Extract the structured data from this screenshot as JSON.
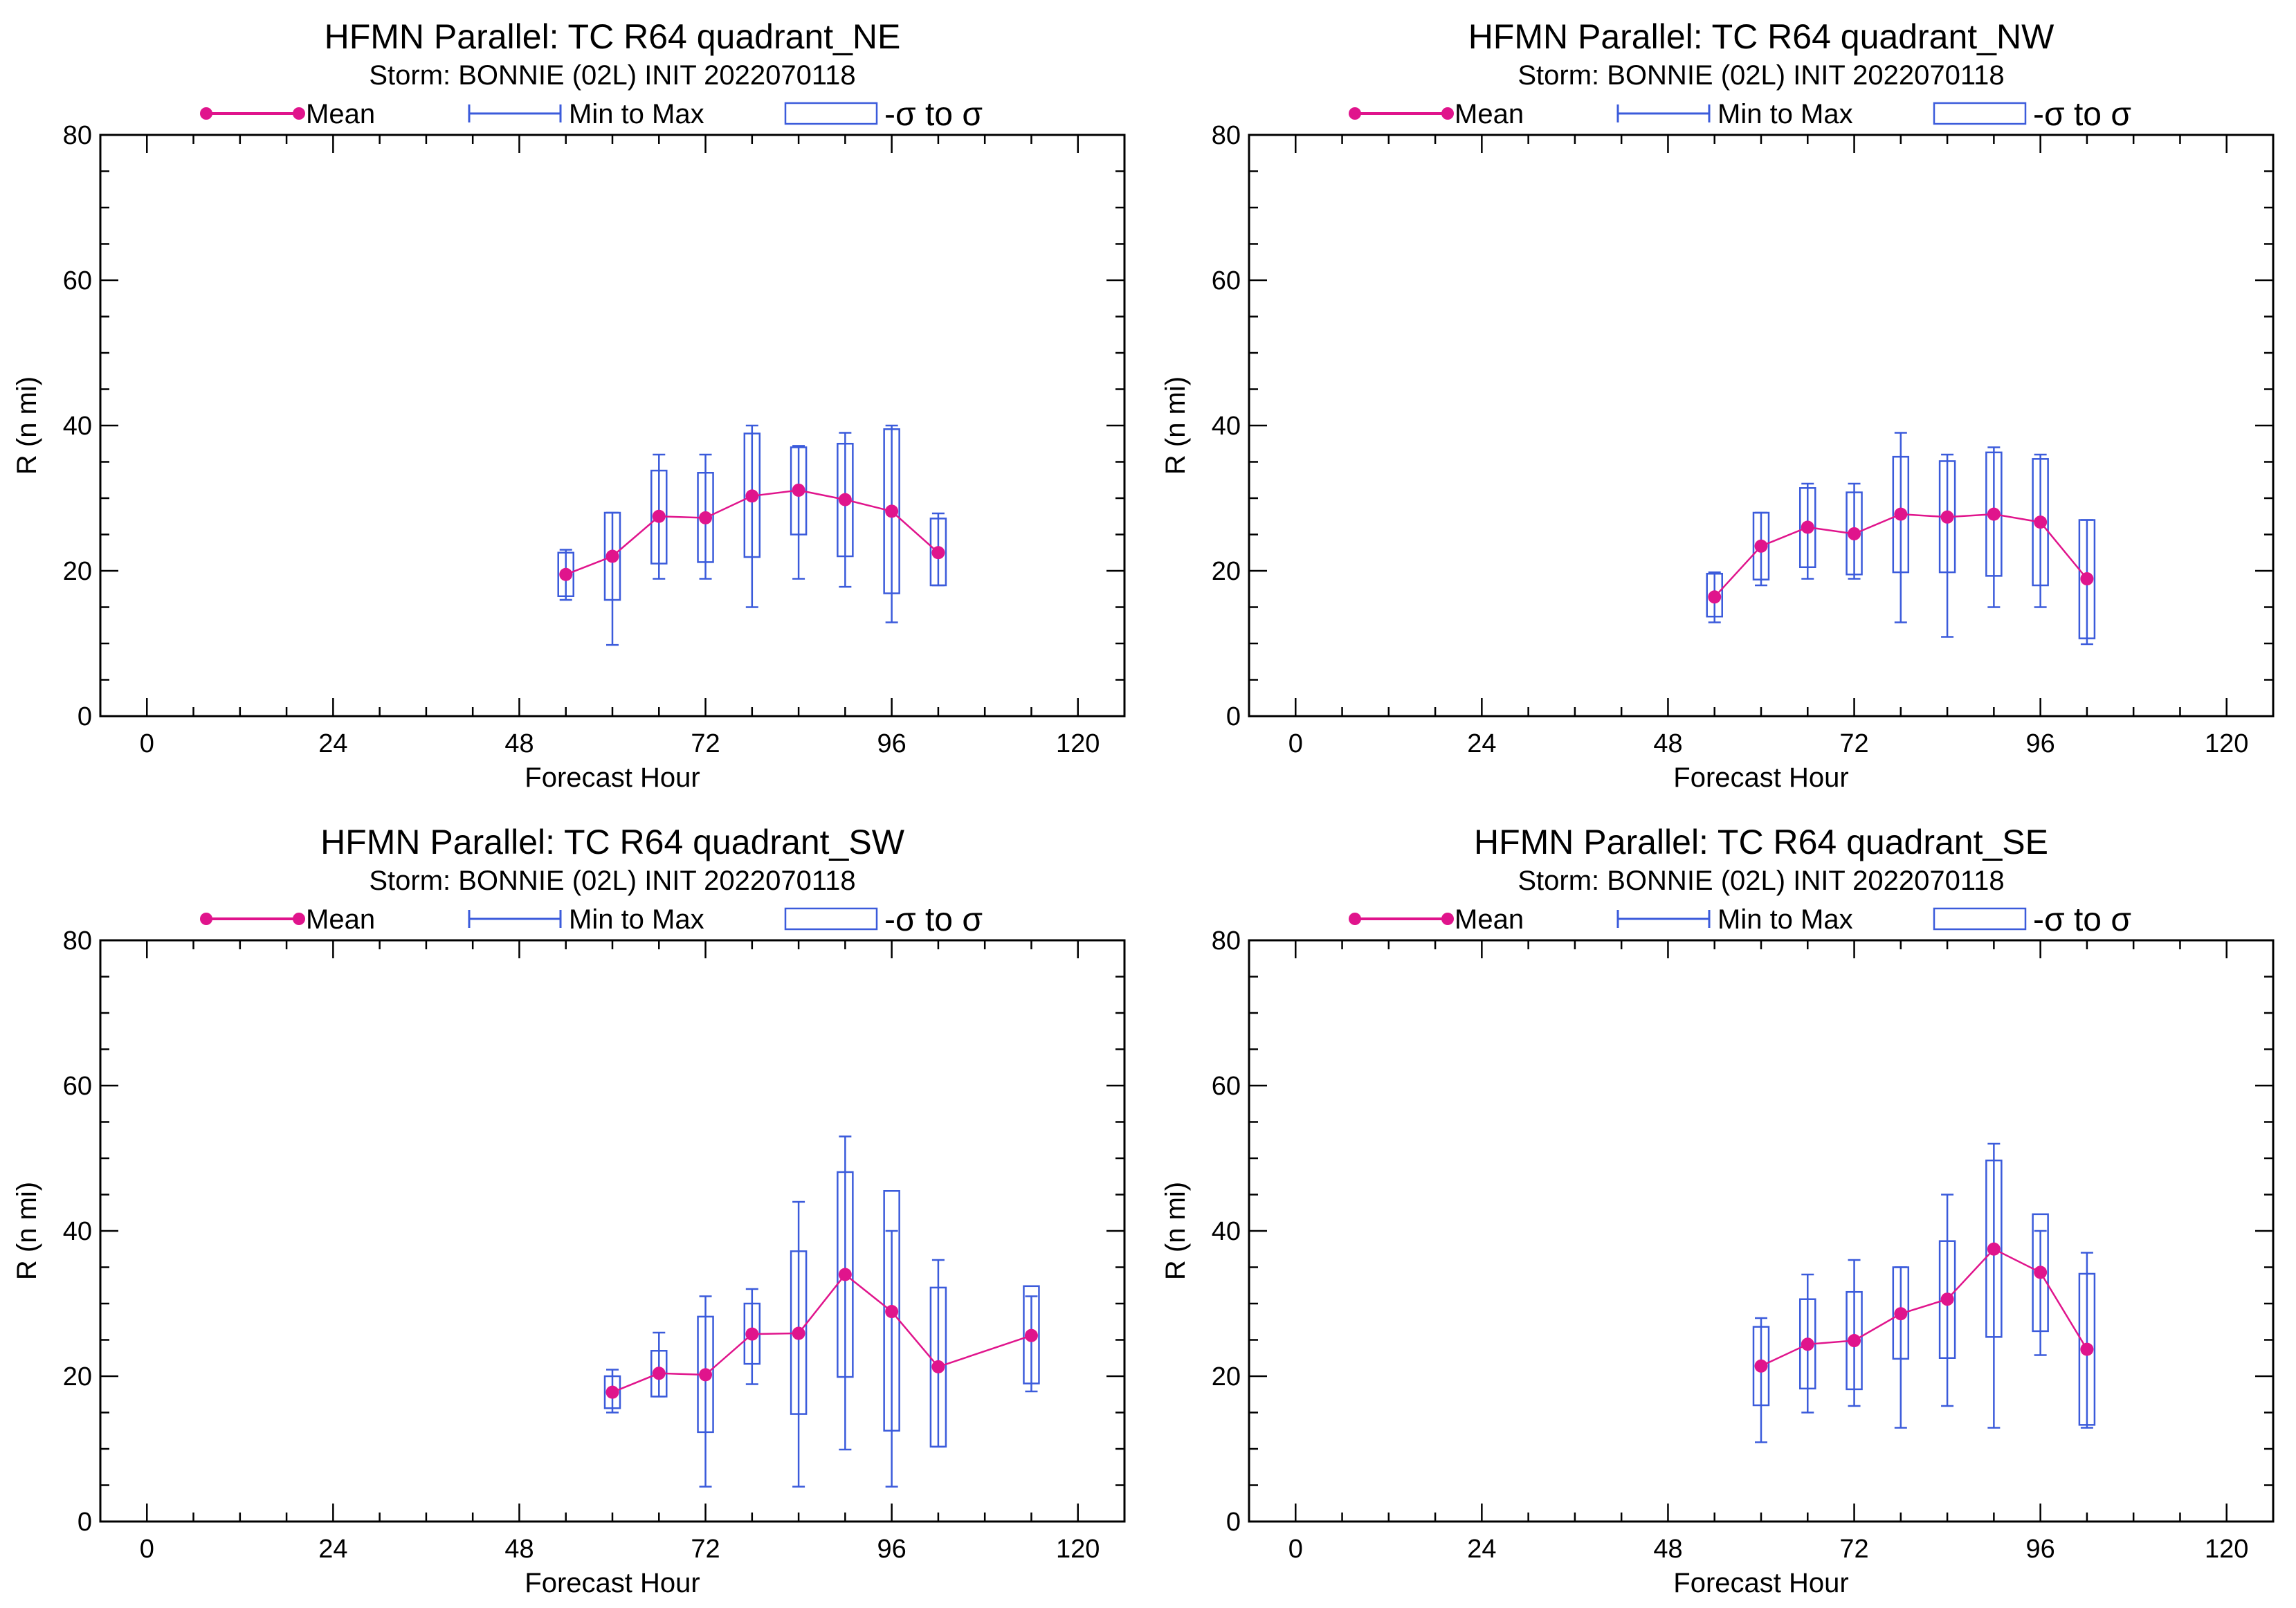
{
  "colors": {
    "mean": "#e0148c",
    "range": "#3b5bdb",
    "axis": "#000000"
  },
  "legend": {
    "mean": "Mean",
    "minmax": "Min to Max",
    "sigma": "-σ to σ"
  },
  "chart_data": [
    {
      "type": "box",
      "title": "HFMN Parallel: TC  R64 quadrant_NE",
      "subtitle": "Storm: BONNIE (02L) INIT 2022070118",
      "xlabel": "Forecast Hour",
      "ylabel": "R (n mi)",
      "xlim": [
        -6,
        126
      ],
      "ylim": [
        0,
        80
      ],
      "xticks": [
        0,
        24,
        48,
        72,
        96,
        120
      ],
      "yticks": [
        0,
        20,
        40,
        60,
        80
      ],
      "x": [
        54,
        60,
        66,
        72,
        78,
        84,
        90,
        96,
        102
      ],
      "mean": [
        19.5,
        22.0,
        27.5,
        27.3,
        30.3,
        31.1,
        29.8,
        28.2,
        22.5
      ],
      "min": [
        16.0,
        9.8,
        18.9,
        18.9,
        15.0,
        18.9,
        17.8,
        12.9,
        18.0
      ],
      "max": [
        22.9,
        28.0,
        36.0,
        36.0,
        40.0,
        37.2,
        39.0,
        40.0,
        27.9
      ],
      "sigma_low": [
        16.5,
        16.0,
        21.0,
        21.2,
        21.9,
        25.0,
        22.0,
        16.9,
        18.0
      ],
      "sigma_high": [
        22.5,
        28.0,
        33.8,
        33.5,
        38.9,
        37.0,
        37.5,
        39.5,
        27.2
      ]
    },
    {
      "type": "box",
      "title": "HFMN Parallel: TC  R64 quadrant_NW",
      "subtitle": "Storm: BONNIE (02L) INIT 2022070118",
      "xlabel": "Forecast Hour",
      "ylabel": "R (n mi)",
      "xlim": [
        -6,
        126
      ],
      "ylim": [
        0,
        80
      ],
      "xticks": [
        0,
        24,
        48,
        72,
        96,
        120
      ],
      "yticks": [
        0,
        20,
        40,
        60,
        80
      ],
      "x": [
        54,
        60,
        66,
        72,
        78,
        84,
        90,
        96,
        102
      ],
      "mean": [
        16.4,
        23.4,
        26.0,
        25.1,
        27.8,
        27.4,
        27.8,
        26.7,
        18.9
      ],
      "min": [
        12.9,
        18.0,
        18.9,
        18.9,
        12.9,
        10.9,
        15.0,
        15.0,
        9.9
      ],
      "max": [
        19.8,
        28.0,
        32.0,
        32.0,
        39.0,
        36.0,
        37.0,
        36.0,
        27.0
      ],
      "sigma_low": [
        13.7,
        18.8,
        20.5,
        19.5,
        19.8,
        19.8,
        19.3,
        18.0,
        10.7
      ],
      "sigma_high": [
        19.6,
        28.0,
        31.4,
        30.8,
        35.7,
        35.1,
        36.3,
        35.4,
        27.0
      ]
    },
    {
      "type": "box",
      "title": "HFMN Parallel: TC  R64 quadrant_SW",
      "subtitle": "Storm: BONNIE (02L) INIT 2022070118",
      "xlabel": "Forecast Hour",
      "ylabel": "R (n mi)",
      "xlim": [
        -6,
        126
      ],
      "ylim": [
        0,
        80
      ],
      "xticks": [
        0,
        24,
        48,
        72,
        96,
        120
      ],
      "yticks": [
        0,
        20,
        40,
        60,
        80
      ],
      "x": [
        60,
        66,
        72,
        78,
        84,
        90,
        96,
        102,
        114
      ],
      "mean": [
        17.8,
        20.4,
        20.2,
        25.8,
        25.9,
        34.0,
        28.9,
        21.3,
        25.6
      ],
      "min": [
        15.0,
        17.2,
        4.8,
        18.9,
        4.8,
        9.9,
        4.8,
        10.3,
        17.9
      ],
      "max": [
        20.9,
        26.0,
        31.0,
        32.0,
        44.0,
        53.0,
        40.0,
        36.0,
        31.0
      ],
      "sigma_low": [
        15.6,
        17.2,
        12.3,
        21.7,
        14.8,
        19.9,
        12.5,
        10.3,
        19.0
      ],
      "sigma_high": [
        20.0,
        23.5,
        28.2,
        30.0,
        37.2,
        48.1,
        45.5,
        32.2,
        32.4
      ]
    },
    {
      "type": "box",
      "title": "HFMN Parallel: TC  R64 quadrant_SE",
      "subtitle": "Storm: BONNIE (02L) INIT 2022070118",
      "xlabel": "Forecast Hour",
      "ylabel": "R (n mi)",
      "xlim": [
        -6,
        126
      ],
      "ylim": [
        0,
        80
      ],
      "xticks": [
        0,
        24,
        48,
        72,
        96,
        120
      ],
      "yticks": [
        0,
        20,
        40,
        60,
        80
      ],
      "x": [
        60,
        66,
        72,
        78,
        84,
        90,
        96,
        102
      ],
      "mean": [
        21.4,
        24.4,
        24.9,
        28.6,
        30.6,
        37.5,
        34.3,
        23.7
      ],
      "min": [
        10.9,
        15.0,
        15.9,
        12.9,
        15.9,
        12.9,
        22.9,
        12.9
      ],
      "max": [
        28.0,
        34.0,
        36.0,
        35.0,
        45.0,
        52.0,
        40.0,
        37.0
      ],
      "sigma_low": [
        16.0,
        18.3,
        18.2,
        22.4,
        22.5,
        25.4,
        26.2,
        13.3
      ],
      "sigma_high": [
        26.8,
        30.6,
        31.6,
        35.0,
        38.6,
        49.7,
        42.3,
        34.1
      ]
    }
  ]
}
